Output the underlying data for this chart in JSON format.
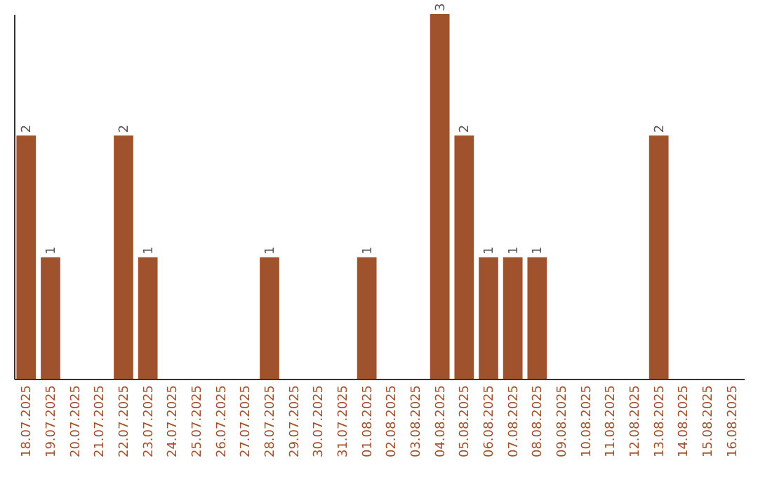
{
  "chart_data": {
    "type": "bar",
    "categories": [
      "18.07.2025",
      "19.07.2025",
      "20.07.2025",
      "21.07.2025",
      "22.07.2025",
      "23.07.2025",
      "24.07.2025",
      "25.07.2025",
      "26.07.2025",
      "27.07.2025",
      "28.07.2025",
      "29.07.2025",
      "30.07.2025",
      "31.07.2025",
      "01.08.2025",
      "02.08.2025",
      "03.08.2025",
      "04.08.2025",
      "05.08.2025",
      "06.08.2025",
      "07.08.2025",
      "08.08.2025",
      "09.08.2025",
      "10.08.2025",
      "11.08.2025",
      "12.08.2025",
      "13.08.2025",
      "14.08.2025",
      "15.08.2025",
      "16.08.2025"
    ],
    "values": [
      2,
      1,
      0,
      0,
      2,
      1,
      0,
      0,
      0,
      0,
      1,
      0,
      0,
      0,
      1,
      0,
      0,
      3,
      2,
      1,
      1,
      1,
      0,
      0,
      0,
      0,
      2,
      0,
      0,
      0
    ],
    "value_labels": [
      "2",
      "1",
      null,
      null,
      "2",
      "1",
      null,
      null,
      null,
      null,
      "1",
      null,
      null,
      null,
      "1",
      null,
      null,
      "3",
      "2",
      "1",
      "1",
      "1",
      null,
      null,
      null,
      null,
      "2",
      null,
      null,
      null
    ],
    "color": "#a0522d",
    "tick_labels": "x",
    "grid": false
  }
}
